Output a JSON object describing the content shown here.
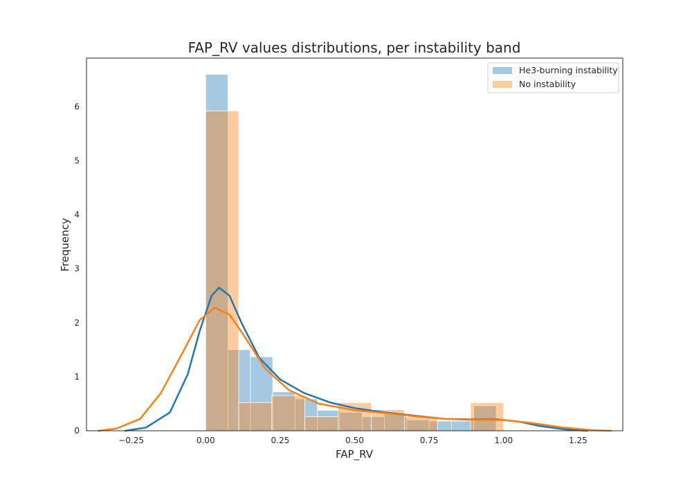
{
  "chart_data": {
    "type": "histogram",
    "title": "FAP_RV values distributions, per instability band",
    "xlabel": "FAP_RV",
    "ylabel": "Frequency",
    "xlim": [
      -0.4,
      1.4
    ],
    "ylim": [
      0,
      6.9
    ],
    "x_ticks": [
      -0.25,
      0.0,
      0.25,
      0.5,
      0.75,
      1.0,
      1.25
    ],
    "x_tick_labels": [
      "−0.25",
      "0.00",
      "0.25",
      "0.50",
      "0.75",
      "1.00",
      "1.25"
    ],
    "y_ticks": [
      0,
      1,
      2,
      3,
      4,
      5,
      6
    ],
    "y_tick_labels": [
      "0",
      "1",
      "2",
      "3",
      "4",
      "5",
      "6"
    ],
    "grid": false,
    "legend_position": "top-right",
    "series": [
      {
        "name": "He3-burning instability",
        "color": "#1f77b4",
        "bin_edges": [
          0.0,
          0.075,
          0.15,
          0.225,
          0.3,
          0.375,
          0.45,
          0.525,
          0.6,
          0.675,
          0.75,
          0.825,
          0.9,
          0.975
        ],
        "values": [
          6.6,
          1.5,
          1.37,
          0.72,
          0.59,
          0.38,
          0.34,
          0.26,
          0.31,
          0.2,
          0.18,
          0.18,
          0.46
        ],
        "kde": [
          [
            -0.27,
            0.0
          ],
          [
            -0.2,
            0.06
          ],
          [
            -0.12,
            0.34
          ],
          [
            -0.06,
            1.05
          ],
          [
            -0.02,
            1.85
          ],
          [
            0.02,
            2.5
          ],
          [
            0.045,
            2.65
          ],
          [
            0.08,
            2.5
          ],
          [
            0.12,
            2.0
          ],
          [
            0.18,
            1.35
          ],
          [
            0.25,
            0.95
          ],
          [
            0.33,
            0.7
          ],
          [
            0.42,
            0.52
          ],
          [
            0.5,
            0.42
          ],
          [
            0.6,
            0.34
          ],
          [
            0.7,
            0.28
          ],
          [
            0.8,
            0.22
          ],
          [
            0.9,
            0.21
          ],
          [
            0.98,
            0.21
          ],
          [
            1.05,
            0.17
          ],
          [
            1.12,
            0.09
          ],
          [
            1.2,
            0.03
          ],
          [
            1.28,
            0.0
          ]
        ]
      },
      {
        "name": "No instability",
        "color": "#ff7f0e",
        "bin_edges": [
          0.0,
          0.111,
          0.222,
          0.333,
          0.444,
          0.556,
          0.667,
          0.778,
          0.889,
          1.0
        ],
        "values": [
          5.92,
          0.52,
          0.65,
          0.26,
          0.52,
          0.39,
          0.26,
          0.0,
          0.52
        ],
        "kde": [
          [
            -0.36,
            0.0
          ],
          [
            -0.3,
            0.04
          ],
          [
            -0.22,
            0.22
          ],
          [
            -0.15,
            0.7
          ],
          [
            -0.08,
            1.42
          ],
          [
            -0.02,
            2.05
          ],
          [
            0.03,
            2.28
          ],
          [
            0.08,
            2.15
          ],
          [
            0.13,
            1.75
          ],
          [
            0.2,
            1.15
          ],
          [
            0.28,
            0.75
          ],
          [
            0.38,
            0.5
          ],
          [
            0.5,
            0.38
          ],
          [
            0.6,
            0.33
          ],
          [
            0.7,
            0.27
          ],
          [
            0.8,
            0.22
          ],
          [
            0.9,
            0.2
          ],
          [
            1.0,
            0.2
          ],
          [
            1.1,
            0.14
          ],
          [
            1.2,
            0.06
          ],
          [
            1.3,
            0.01
          ],
          [
            1.36,
            0.0
          ]
        ]
      }
    ]
  }
}
